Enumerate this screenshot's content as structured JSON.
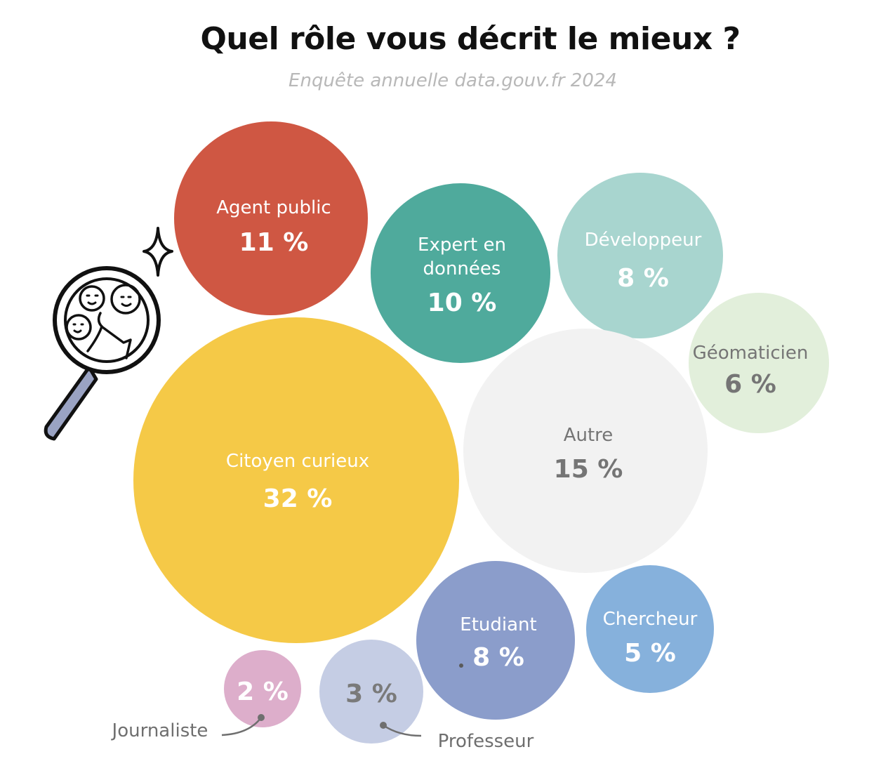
{
  "title": "Quel rôle vous décrit le mieux ?",
  "subtitle": "Enquête annuelle data.gouv.fr 2024",
  "icon": "magnifying-glass-people-icon",
  "chart_data": {
    "type": "bubble",
    "title": "Quel rôle vous décrit le mieux ?",
    "subtitle": "Enquête annuelle data.gouv.fr 2024",
    "unit": "%",
    "items": [
      {
        "label": [
          "Agent public"
        ],
        "value": 11,
        "display": "11 %",
        "color": "#cf5743",
        "text_color": "#ffffff",
        "pct_color": "#ffffff"
      },
      {
        "label": [
          "Expert en",
          "données"
        ],
        "value": 10,
        "display": "10 %",
        "color": "#4faa9c",
        "text_color": "#ffffff",
        "pct_color": "#ffffff"
      },
      {
        "label": [
          "Développeur"
        ],
        "value": 8,
        "display": "8 %",
        "color": "#a8d5cf",
        "text_color": "#ffffff",
        "pct_color": "#ffffff"
      },
      {
        "label": [
          "Géomaticien"
        ],
        "value": 6,
        "display": "6 %",
        "color": "#e2efdb",
        "text_color": "#757575",
        "pct_color": "#757575"
      },
      {
        "label": [
          "Autre"
        ],
        "value": 15,
        "display": "15 %",
        "color": "#f2f2f2",
        "text_color": "#757575",
        "pct_color": "#757575"
      },
      {
        "label": [
          "Citoyen curieux"
        ],
        "value": 32,
        "display": "32 %",
        "color": "#f5c947",
        "text_color": "#ffffff",
        "pct_color": "#ffffff"
      },
      {
        "label": [
          "Etudiant"
        ],
        "value": 8,
        "display": "8 %",
        "color": "#8b9dcb",
        "text_color": "#ffffff",
        "pct_color": "#ffffff"
      },
      {
        "label": [
          "Chercheur"
        ],
        "value": 5,
        "display": "5 %",
        "color": "#86b1dc",
        "text_color": "#ffffff",
        "pct_color": "#ffffff"
      },
      {
        "label": [
          "Journaliste"
        ],
        "value": 2,
        "display": "2 %",
        "color": "#ddaecb",
        "text_color": "#6f6f6f",
        "pct_color": "#ffffff",
        "label_outside": true
      },
      {
        "label": [
          "Professeur"
        ],
        "value": 3,
        "display": "3 %",
        "color": "#c5cde4",
        "text_color": "#6f6f6f",
        "pct_color": "#7a7a7a",
        "label_outside": true
      }
    ]
  }
}
